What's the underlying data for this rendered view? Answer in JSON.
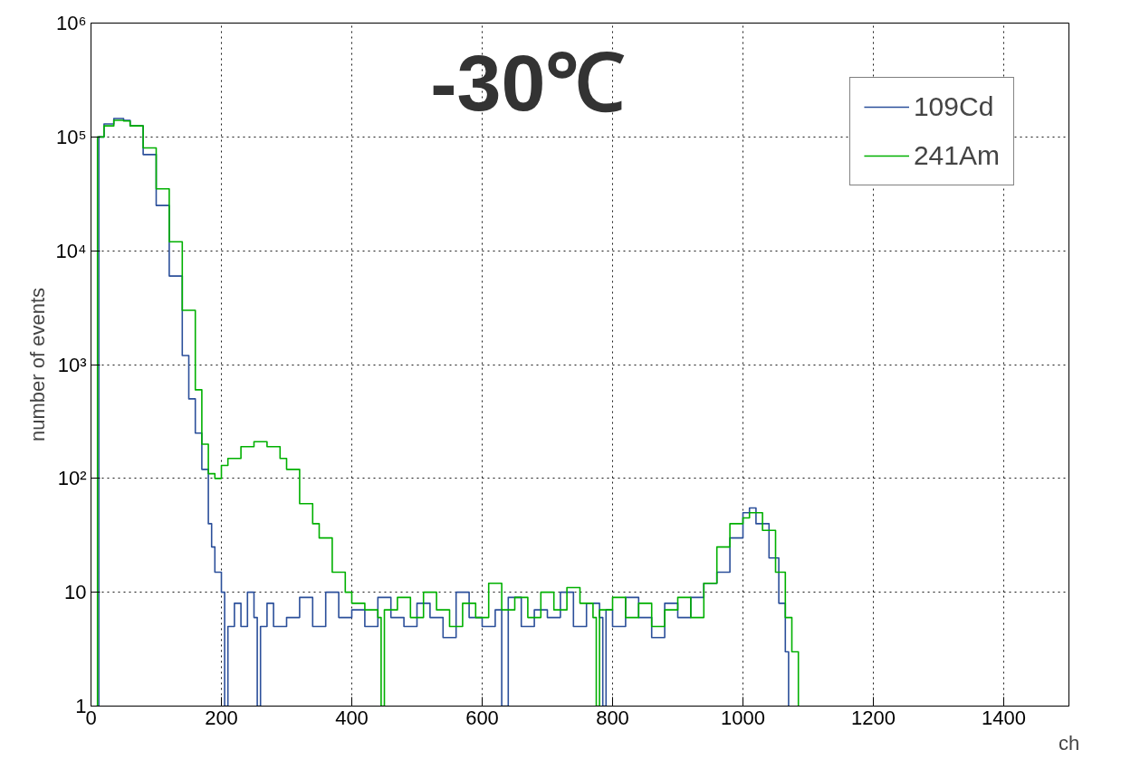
{
  "chart_data": {
    "type": "step",
    "title": "-30℃",
    "xlabel": "ch",
    "ylabel": "number of events",
    "log": "y",
    "grid": true,
    "legend": "top right",
    "xlim": [
      0,
      1500
    ],
    "ylim": [
      1,
      1000000
    ],
    "xticks": [
      0,
      200,
      400,
      600,
      800,
      1000,
      1200,
      1400
    ],
    "yticks": [
      1,
      10,
      {
        "value": 100,
        "label": "10²"
      },
      {
        "value": 1000,
        "label": "10³"
      },
      {
        "value": 10000,
        "label": "10⁴"
      },
      {
        "value": 100000,
        "label": "10⁵"
      },
      {
        "value": 1000000,
        "label": "10⁶"
      }
    ],
    "series": [
      {
        "name": "109Cd",
        "color": "#2b4f9a",
        "x": [
          10,
          12,
          20,
          35,
          50,
          60,
          80,
          100,
          120,
          140,
          150,
          160,
          170,
          180,
          185,
          190,
          200,
          205,
          210,
          220,
          230,
          240,
          250,
          255,
          260,
          270,
          280,
          300,
          320,
          340,
          360,
          380,
          400,
          420,
          440,
          460,
          480,
          500,
          520,
          540,
          560,
          580,
          600,
          620,
          630,
          640,
          660,
          680,
          700,
          720,
          740,
          760,
          780,
          785,
          790,
          800,
          820,
          840,
          860,
          880,
          900,
          920,
          940,
          960,
          980,
          1000,
          1010,
          1020,
          1040,
          1055,
          1065,
          1070
        ],
        "values": [
          1,
          100000,
          130000,
          145000,
          140000,
          125000,
          70000,
          25000,
          6000,
          1200,
          500,
          250,
          120,
          40,
          25,
          15,
          10,
          1,
          5,
          8,
          5,
          10,
          6,
          1,
          5,
          8,
          5,
          6,
          9,
          5,
          10,
          6,
          7,
          5,
          9,
          6,
          5,
          8,
          6,
          4,
          10,
          6,
          5,
          7,
          1,
          9,
          5,
          7,
          6,
          10,
          5,
          8,
          6,
          1,
          7,
          5,
          9,
          6,
          4,
          8,
          6,
          9,
          12,
          15,
          30,
          50,
          55,
          40,
          20,
          8,
          3,
          1
        ]
      },
      {
        "name": "241Am",
        "color": "#00b000",
        "x": [
          8,
          10,
          20,
          35,
          50,
          60,
          80,
          100,
          120,
          140,
          160,
          170,
          180,
          190,
          200,
          210,
          230,
          250,
          270,
          290,
          300,
          320,
          340,
          350,
          370,
          390,
          400,
          420,
          440,
          445,
          450,
          470,
          490,
          510,
          530,
          550,
          570,
          590,
          610,
          630,
          650,
          670,
          690,
          710,
          730,
          750,
          770,
          775,
          780,
          800,
          820,
          840,
          860,
          880,
          900,
          920,
          940,
          960,
          980,
          1000,
          1010,
          1030,
          1050,
          1065,
          1075,
          1085
        ],
        "values": [
          1,
          100000,
          125000,
          140000,
          138000,
          125000,
          80000,
          35000,
          12000,
          3000,
          600,
          200,
          110,
          100,
          130,
          150,
          190,
          210,
          190,
          150,
          120,
          60,
          40,
          30,
          15,
          10,
          8,
          7,
          6,
          1,
          7,
          9,
          6,
          10,
          7,
          5,
          8,
          6,
          12,
          7,
          9,
          6,
          10,
          7,
          11,
          8,
          6,
          1,
          7,
          9,
          6,
          8,
          5,
          7,
          9,
          6,
          12,
          25,
          40,
          45,
          50,
          35,
          15,
          6,
          3,
          1
        ]
      }
    ]
  }
}
